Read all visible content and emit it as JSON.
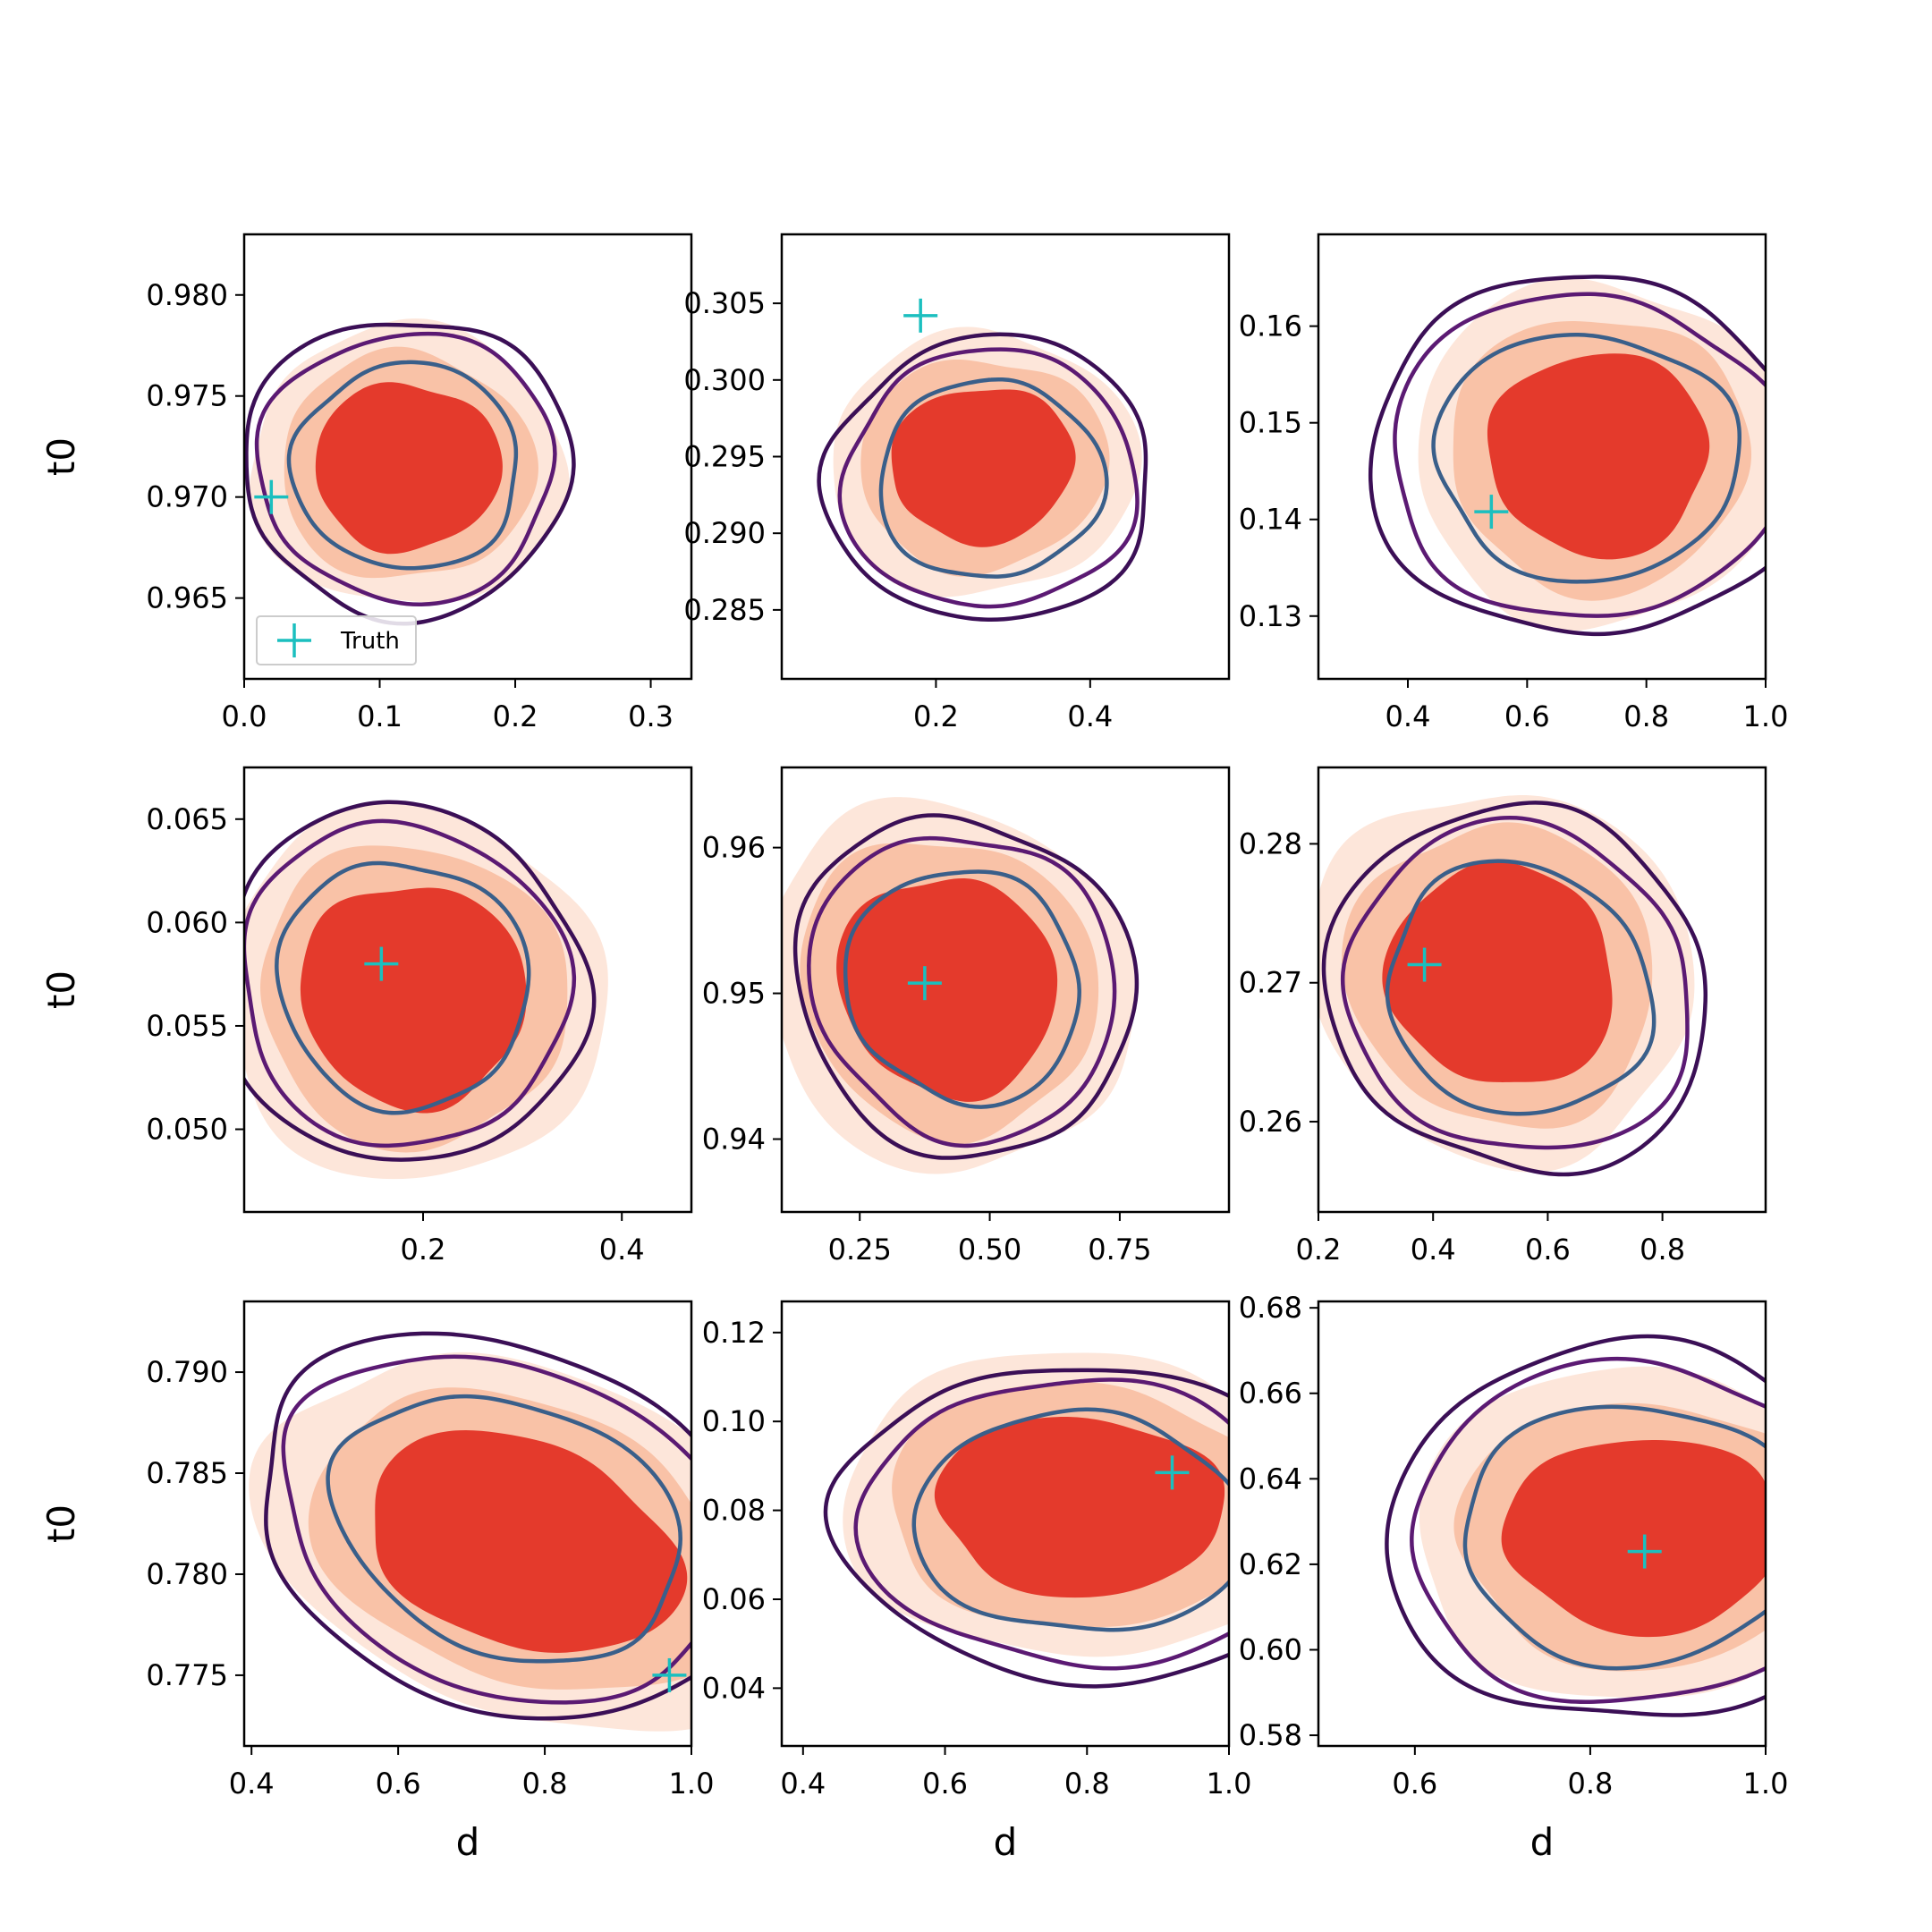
{
  "figure": {
    "xlabel": "d",
    "ylabel": "t0",
    "legend_label": "Truth"
  },
  "colors": {
    "fill_outer": "#fde6da",
    "fill_mid": "#f9c2a7",
    "fill_inner": "#e43a2c",
    "contour_outer": "#3b0f56",
    "contour_mid": "#5b1a73",
    "contour_inner": "#3a5f8a",
    "truth": "#1bbfbf",
    "axis": "#000000"
  },
  "chart_data": [
    {
      "type": "contour",
      "xlim": [
        0.0,
        0.33
      ],
      "ylim": [
        0.961,
        0.983
      ],
      "xticks": [
        0.0,
        0.1,
        0.2,
        0.3
      ],
      "xtick_labels": [
        "0.0",
        "0.1",
        "0.2",
        "0.3"
      ],
      "yticks": [
        0.965,
        0.97,
        0.975,
        0.98
      ],
      "ytick_labels": [
        "0.965",
        "0.970",
        "0.975",
        "0.980"
      ],
      "truth": [
        0.02,
        0.97
      ],
      "fill_center": [
        0.12,
        0.9715
      ],
      "fill_spread": [
        0.075,
        0.0045
      ],
      "contour_center": [
        0.12,
        0.9715
      ],
      "contour_spread": [
        0.085,
        0.0052
      ],
      "xlabel": "",
      "ylabel": "t0",
      "legend": true
    },
    {
      "type": "contour",
      "xlim": [
        0.0,
        0.58
      ],
      "ylim": [
        0.2805,
        0.3095
      ],
      "xticks": [
        0.2,
        0.4
      ],
      "xtick_labels": [
        "0.2",
        "0.4"
      ],
      "yticks": [
        0.285,
        0.29,
        0.295,
        0.3,
        0.305
      ],
      "ytick_labels": [
        "0.285",
        "0.290",
        "0.295",
        "0.300",
        "0.305"
      ],
      "truth": [
        0.18,
        0.3042
      ],
      "fill_center": [
        0.26,
        0.2945
      ],
      "fill_spread": [
        0.11,
        0.0065
      ],
      "contour_center": [
        0.27,
        0.2935
      ],
      "contour_spread": [
        0.13,
        0.0075
      ],
      "xlabel": "",
      "ylabel": "",
      "legend": false
    },
    {
      "type": "contour",
      "xlim": [
        0.25,
        1.0
      ],
      "ylim": [
        0.1235,
        0.1695
      ],
      "xticks": [
        0.4,
        0.6,
        0.8,
        1.0
      ],
      "xtick_labels": [
        "0.4",
        "0.6",
        "0.8",
        "1.0"
      ],
      "yticks": [
        0.13,
        0.14,
        0.15,
        0.16
      ],
      "ytick_labels": [
        "0.13",
        "0.14",
        "0.15",
        "0.16"
      ],
      "truth": [
        0.54,
        0.1408
      ],
      "fill_center": [
        0.72,
        0.1468
      ],
      "fill_spread": [
        0.2,
        0.0115
      ],
      "contour_center": [
        0.7,
        0.1465
      ],
      "contour_spread": [
        0.26,
        0.013
      ],
      "xlabel": "",
      "ylabel": "",
      "legend": false
    },
    {
      "type": "contour",
      "xlim": [
        0.02,
        0.47
      ],
      "ylim": [
        0.046,
        0.0675
      ],
      "xticks": [
        0.2,
        0.4
      ],
      "xtick_labels": [
        "0.2",
        "0.4"
      ],
      "yticks": [
        0.05,
        0.055,
        0.06,
        0.065
      ],
      "ytick_labels": [
        "0.050",
        "0.055",
        "0.060",
        "0.065"
      ],
      "truth": [
        0.158,
        0.058
      ],
      "fill_center": [
        0.19,
        0.0565
      ],
      "fill_spread": [
        0.125,
        0.0058
      ],
      "contour_center": [
        0.18,
        0.057
      ],
      "contour_spread": [
        0.13,
        0.006
      ],
      "xlabel": "",
      "ylabel": "t0",
      "legend": false
    },
    {
      "type": "contour",
      "xlim": [
        0.1,
        0.96
      ],
      "ylim": [
        0.935,
        0.9655
      ],
      "xticks": [
        0.25,
        0.5,
        0.75
      ],
      "xtick_labels": [
        "0.25",
        "0.50",
        "0.75"
      ],
      "yticks": [
        0.94,
        0.95,
        0.96
      ],
      "ytick_labels": [
        "0.94",
        "0.95",
        "0.96"
      ],
      "truth": [
        0.375,
        0.9507
      ],
      "fill_center": [
        0.42,
        0.9505
      ],
      "fill_spread": [
        0.22,
        0.0085
      ],
      "contour_center": [
        0.45,
        0.9505
      ],
      "contour_spread": [
        0.22,
        0.0085
      ],
      "xlabel": "",
      "ylabel": "",
      "legend": false
    },
    {
      "type": "contour",
      "xlim": [
        0.2,
        0.98
      ],
      "ylim": [
        0.2535,
        0.2855
      ],
      "xticks": [
        0.2,
        0.4,
        0.6,
        0.8
      ],
      "xtick_labels": [
        "0.2",
        "0.4",
        "0.6",
        "0.8"
      ],
      "yticks": [
        0.26,
        0.27,
        0.28
      ],
      "ytick_labels": [
        "0.26",
        "0.27",
        "0.28"
      ],
      "truth": [
        0.385,
        0.2713
      ],
      "fill_center": [
        0.52,
        0.2705
      ],
      "fill_spread": [
        0.22,
        0.0085
      ],
      "contour_center": [
        0.55,
        0.2695
      ],
      "contour_spread": [
        0.24,
        0.009
      ],
      "xlabel": "",
      "ylabel": "",
      "legend": false
    },
    {
      "type": "contour",
      "xlim": [
        0.39,
        1.0
      ],
      "ylim": [
        0.7715,
        0.7935
      ],
      "xticks": [
        0.4,
        0.6,
        0.8,
        1.0
      ],
      "xtick_labels": [
        "0.4",
        "0.6",
        "0.8",
        "1.0"
      ],
      "yticks": [
        0.775,
        0.78,
        0.785,
        0.79
      ],
      "ytick_labels": [
        "0.775",
        "0.780",
        "0.785",
        "0.790"
      ],
      "truth": [
        0.97,
        0.775
      ],
      "fill_center": [
        0.77,
        0.7815
      ],
      "fill_spread": [
        0.24,
        0.0055
      ],
      "contour_center": [
        0.75,
        0.7823
      ],
      "contour_spread": [
        0.25,
        0.0063
      ],
      "xlabel": "d",
      "ylabel": "t0",
      "legend": false
    },
    {
      "type": "contour",
      "xlim": [
        0.37,
        1.0
      ],
      "ylim": [
        0.027,
        0.127
      ],
      "xticks": [
        0.4,
        0.6,
        0.8,
        1.0
      ],
      "xtick_labels": [
        "0.4",
        "0.6",
        "0.8",
        "1.0"
      ],
      "yticks": [
        0.04,
        0.06,
        0.08,
        0.1,
        0.12
      ],
      "ytick_labels": [
        "0.04",
        "0.06",
        "0.08",
        "0.10",
        "0.12"
      ],
      "truth": [
        0.92,
        0.0885
      ],
      "fill_center": [
        0.79,
        0.081
      ],
      "fill_spread": [
        0.22,
        0.022
      ],
      "contour_center": [
        0.79,
        0.077
      ],
      "contour_spread": [
        0.24,
        0.025
      ],
      "xlabel": "d",
      "ylabel": "",
      "legend": false
    },
    {
      "type": "contour",
      "xlim": [
        0.49,
        1.0
      ],
      "ylim": [
        0.5775,
        0.6815
      ],
      "xticks": [
        0.6,
        0.8,
        1.0
      ],
      "xtick_labels": [
        "0.6",
        "0.8",
        "1.0"
      ],
      "yticks": [
        0.58,
        0.6,
        0.62,
        0.64,
        0.66,
        0.68
      ],
      "ytick_labels": [
        "0.58",
        "0.60",
        "0.62",
        "0.64",
        "0.66",
        "0.68"
      ],
      "truth": [
        0.862,
        0.623
      ],
      "fill_center": [
        0.86,
        0.627
      ],
      "fill_spread": [
        0.17,
        0.025
      ],
      "contour_center": [
        0.85,
        0.627
      ],
      "contour_spread": [
        0.2,
        0.031
      ],
      "xlabel": "d",
      "ylabel": "",
      "legend": false
    }
  ]
}
